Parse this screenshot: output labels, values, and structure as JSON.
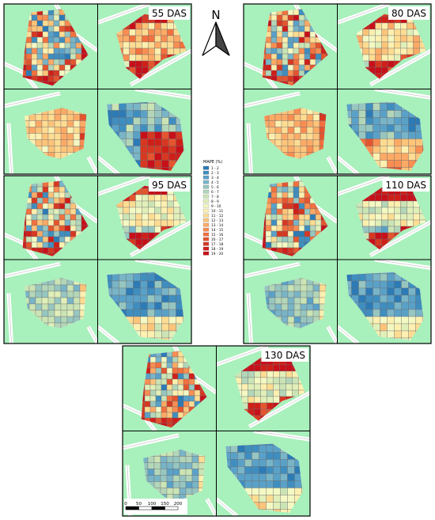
{
  "panels": [
    {
      "title": "55 DAS",
      "profile": 0
    },
    {
      "title": "80 DAS",
      "profile": 1
    },
    {
      "title": "95 DAS",
      "profile": 2
    },
    {
      "title": "110 DAS",
      "profile": 3
    },
    {
      "title": "130 DAS",
      "profile": 4
    }
  ],
  "north_arrow": {
    "label": "N",
    "icon": "north-arrow-icon"
  },
  "legend": {
    "title": "MAPE (%)",
    "classes": [
      "1 - 2",
      "2 - 3",
      "3 - 4",
      "4 - 5",
      "5 - 6",
      "6 - 7",
      "7 - 8",
      "8 - 9",
      "9 - 10",
      "10 - 11",
      "11 - 12",
      "12 - 13",
      "13 - 14",
      "14 - 15",
      "15 - 16",
      "16 - 17",
      "17 - 18",
      "18 - 19",
      "19 - 20"
    ],
    "colors": [
      "#2c7bb6",
      "#3f8ebf",
      "#5aa1c8",
      "#79b4c7",
      "#97c6c0",
      "#b3d6b9",
      "#cbe4b5",
      "#e1efb9",
      "#f4f9c4",
      "#fdf0b0",
      "#fedc92",
      "#fdc47a",
      "#fcaa66",
      "#f98e52",
      "#f2713f",
      "#e4552f",
      "#d73822",
      "#cf1f19",
      "#c7101a"
    ]
  },
  "scale_bar": {
    "ticks": [
      "0",
      "50",
      "100",
      "150",
      "200"
    ]
  }
}
